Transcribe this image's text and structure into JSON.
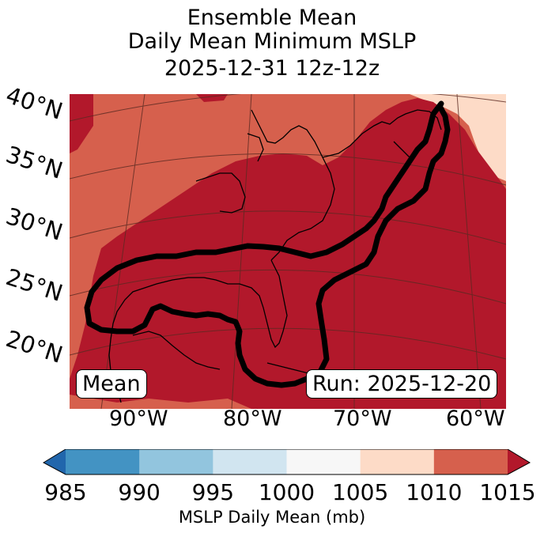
{
  "title": {
    "line1": "Ensemble Mean",
    "line2": "Daily Mean Minimum MSLP",
    "line3": "2025-12-31 12z-12z"
  },
  "map": {
    "lat_labels": [
      "40°N",
      "35°N",
      "30°N",
      "25°N",
      "20°N"
    ],
    "lon_labels": [
      "90°W",
      "80°W",
      "70°W",
      "60°W"
    ],
    "mean_label": "Mean",
    "run_label": "Run: 2025-12-20"
  },
  "colorbar": {
    "ticks": [
      "985",
      "990",
      "995",
      "1000",
      "1005",
      "1010",
      "1015"
    ],
    "colors": [
      "#4393c3",
      "#92c5de",
      "#d1e5f0",
      "#f7f7f7",
      "#fddbc7",
      "#d6604d"
    ],
    "under_color": "#2166ac",
    "over_color": "#b2182b",
    "label": "MSLP Daily Mean (mb)"
  }
}
